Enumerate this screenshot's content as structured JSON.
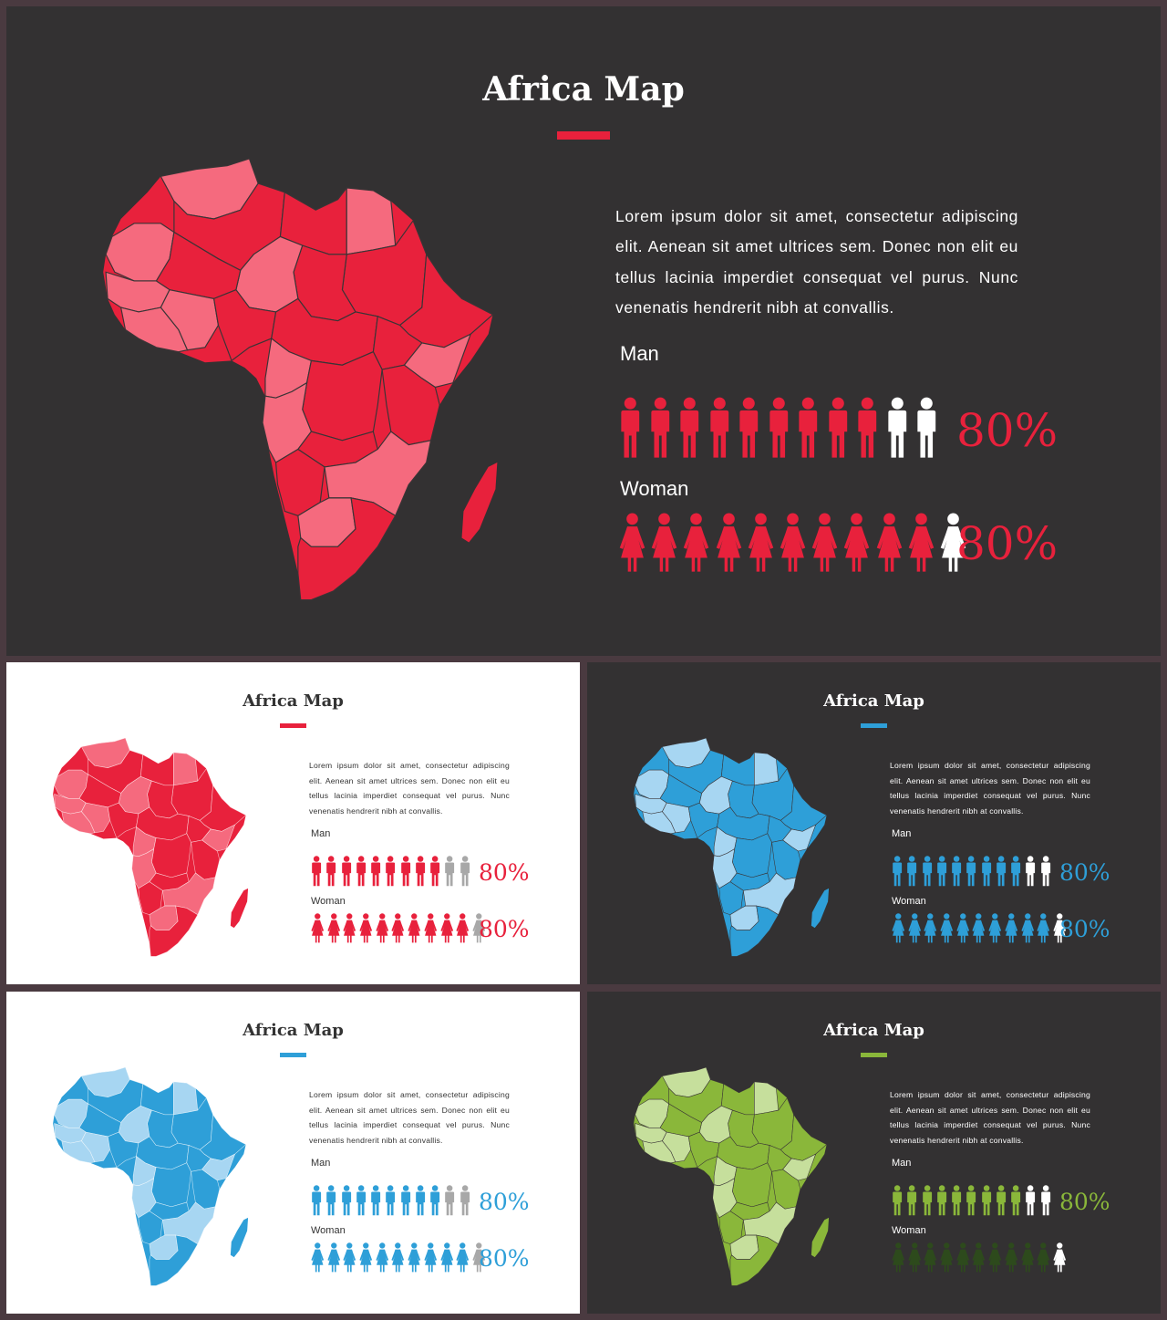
{
  "slides": [
    {
      "id": "main",
      "theme": {
        "bg": "#333132",
        "text": "#ffffff",
        "accent": "#e8213c",
        "accent_light": "#f56a7e",
        "inactive": "#ffffff"
      },
      "title": "Africa Map",
      "body": "Lorem ipsum dolor sit amet, consectetur adipiscing elit. Aenean sit amet ultrices sem. Donec non elit eu tellus lacinia imperdiet consequat vel purus. Nunc venenatis hendrerit nibh at convallis.",
      "man": {
        "label": "Man",
        "percent": "80%",
        "total_icons": 11,
        "filled_icons": 9
      },
      "woman": {
        "label": "Woman",
        "percent": "80%",
        "total_icons": 11,
        "filled_icons": 10
      }
    },
    {
      "id": "light-red",
      "theme": {
        "bg": "#ffffff",
        "text": "#333333",
        "accent": "#e8213c",
        "accent_light": "#f56a7e",
        "inactive": "#a8a8a8"
      },
      "title": "Africa Map",
      "body": "Lorem ipsum dolor sit amet, consectetur adipiscing elit. Aenean sit amet ultrices sem. Donec non elit eu tellus lacinia imperdiet consequat vel purus. Nunc venenatis hendrerit nibh at convallis.",
      "man": {
        "label": "Man",
        "percent": "80%",
        "total_icons": 11,
        "filled_icons": 9
      },
      "woman": {
        "label": "Woman",
        "percent": "80%",
        "total_icons": 11,
        "filled_icons": 10
      }
    },
    {
      "id": "dark-blue",
      "theme": {
        "bg": "#333132",
        "text": "#ffffff",
        "accent": "#2e9fd8",
        "accent_light": "#a7d6f2",
        "inactive": "#ffffff"
      },
      "title": "Africa Map",
      "body": "Lorem ipsum dolor sit amet, consectetur adipiscing elit. Aenean sit amet ultrices sem. Donec non elit eu tellus lacinia imperdiet consequat vel purus. Nunc venenatis hendrerit nibh at convallis.",
      "man": {
        "label": "Man",
        "percent": "80%",
        "total_icons": 11,
        "filled_icons": 9
      },
      "woman": {
        "label": "Woman",
        "percent": "80%",
        "total_icons": 11,
        "filled_icons": 10
      }
    },
    {
      "id": "light-blue",
      "theme": {
        "bg": "#ffffff",
        "text": "#333333",
        "accent": "#2e9fd8",
        "accent_light": "#a7d6f2",
        "inactive": "#a8a8a8"
      },
      "title": "Africa Map",
      "body": "Lorem ipsum dolor sit amet, consectetur adipiscing elit. Aenean sit amet ultrices sem. Donec non elit eu tellus lacinia imperdiet consequat vel purus. Nunc venenatis hendrerit nibh at convallis.",
      "man": {
        "label": "Man",
        "percent": "80%",
        "total_icons": 11,
        "filled_icons": 9
      },
      "woman": {
        "label": "Woman",
        "percent": "80%",
        "total_icons": 11,
        "filled_icons": 10
      }
    },
    {
      "id": "dark-green",
      "theme": {
        "bg": "#333132",
        "text": "#ffffff",
        "accent": "#8ab73a",
        "accent_light": "#c6df9c",
        "inactive": "#ffffff",
        "woman_fill": "#2d4a1c"
      },
      "title": "Africa Map",
      "body": "Lorem ipsum dolor sit amet, consectetur adipiscing elit. Aenean sit amet ultrices sem. Donec non elit eu tellus lacinia imperdiet consequat vel purus. Nunc venenatis hendrerit nibh at convallis.",
      "man": {
        "label": "Man",
        "percent": "80%",
        "total_icons": 11,
        "filled_icons": 9
      },
      "woman": {
        "label": "Woman",
        "percent": "",
        "total_icons": 11,
        "filled_icons": 10
      }
    }
  ]
}
